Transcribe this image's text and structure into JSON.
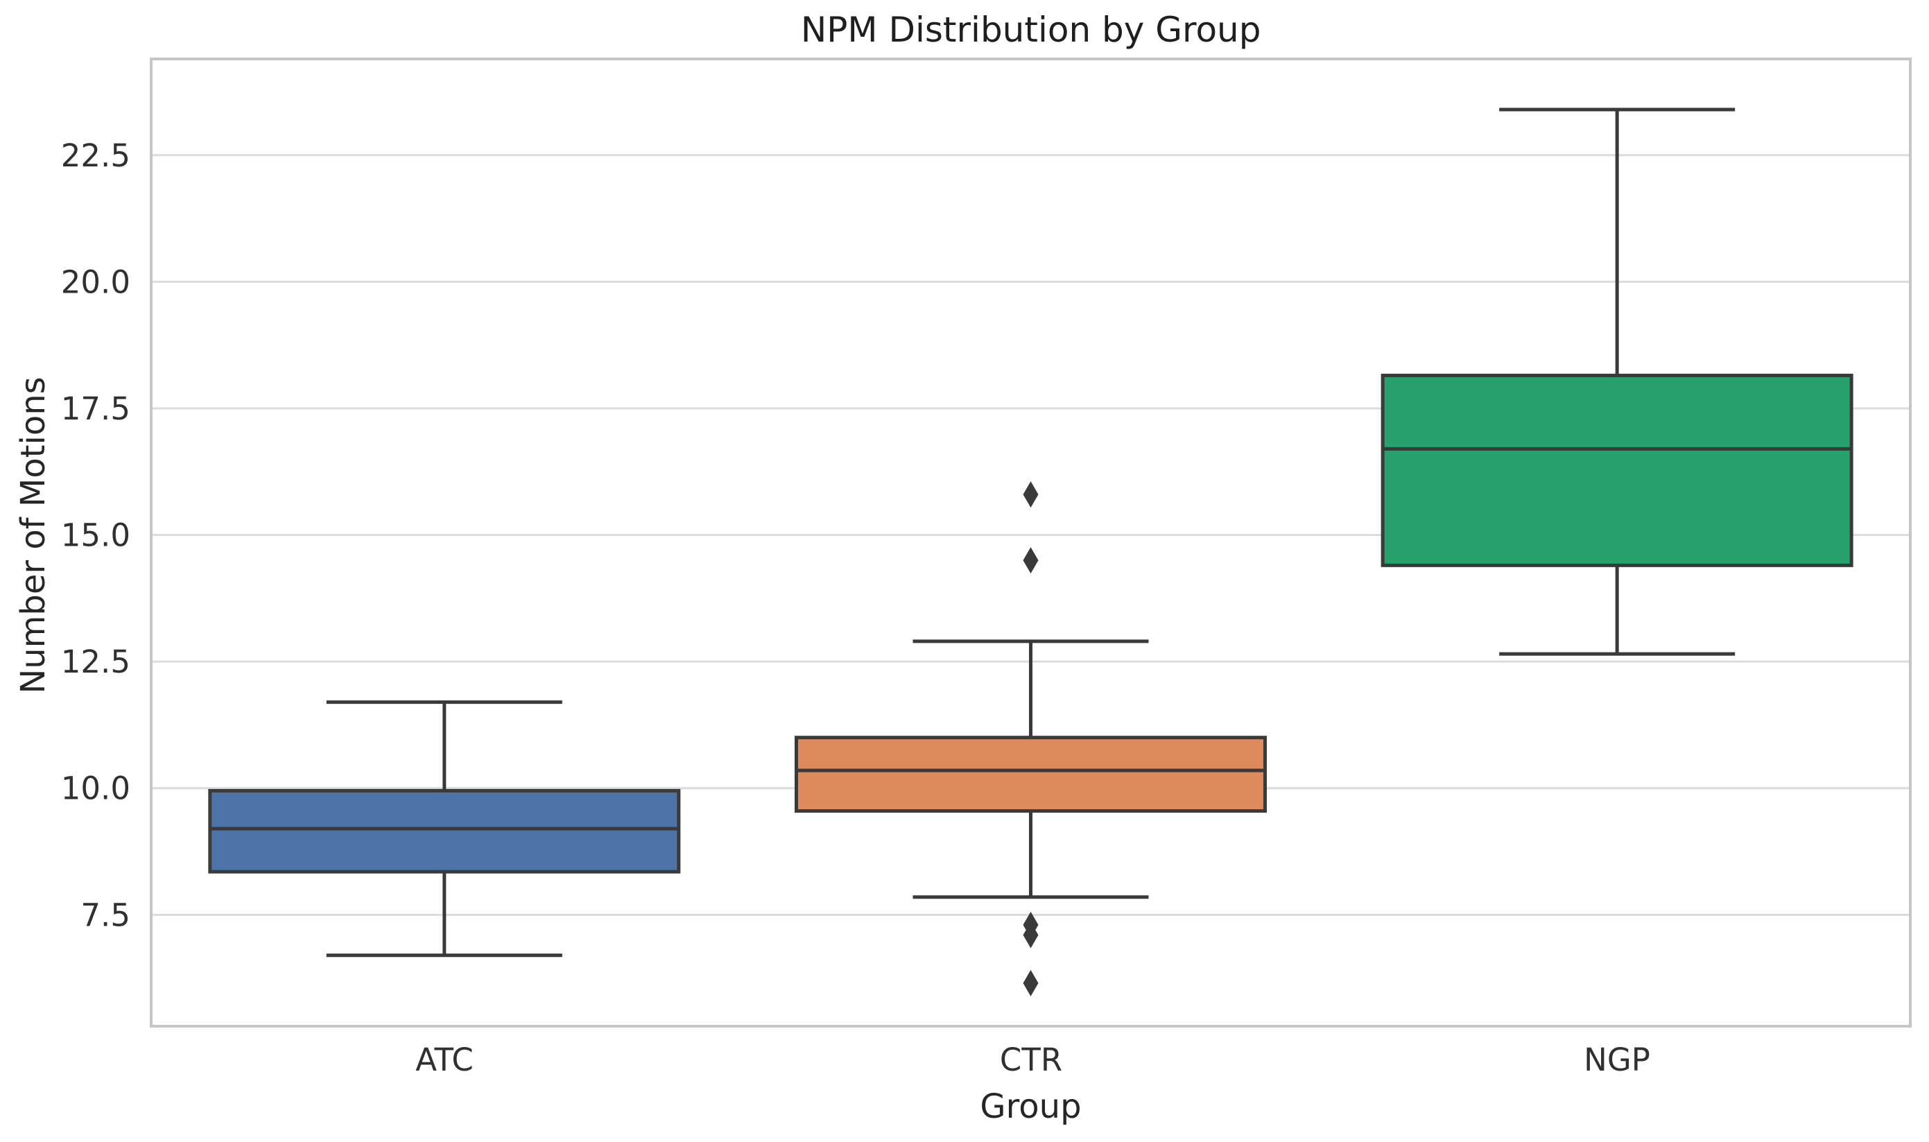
{
  "title": "NPM Distribution by Group",
  "chart_data": {
    "type": "box",
    "title": "NPM Distribution by Group",
    "xlabel": "Group",
    "ylabel": "Number of Motions",
    "categories": [
      "ATC",
      "CTR",
      "NGP"
    ],
    "ytick_labels": [
      "7.5",
      "10.0",
      "12.5",
      "15.0",
      "17.5",
      "20.0",
      "22.5"
    ],
    "yticks": [
      7.5,
      10.0,
      12.5,
      15.0,
      17.5,
      20.0,
      22.5
    ],
    "ylim": [
      5.3,
      24.4
    ],
    "grid": true,
    "legend": "none",
    "series": [
      {
        "name": "ATC",
        "whisker_low": 6.7,
        "q1": 8.35,
        "median": 9.2,
        "q3": 9.95,
        "whisker_high": 11.7,
        "outliers": [],
        "color": "#4C74A9"
      },
      {
        "name": "CTR",
        "whisker_low": 7.85,
        "q1": 9.55,
        "median": 10.35,
        "q3": 11.0,
        "whisker_high": 12.9,
        "outliers": [
          15.8,
          14.5,
          7.3,
          7.1,
          6.15
        ],
        "color": "#DE8A5C"
      },
      {
        "name": "NGP",
        "whisker_low": 12.65,
        "q1": 14.4,
        "median": 16.7,
        "q3": 18.15,
        "whisker_high": 23.4,
        "outliers": [],
        "color": "#27A26C"
      }
    ],
    "colors": {
      "line": "#3a3a3a",
      "grid": "#dcdcdc",
      "spine": "#c6c6c6",
      "tick_text": "#303030",
      "text": "#262626"
    }
  }
}
